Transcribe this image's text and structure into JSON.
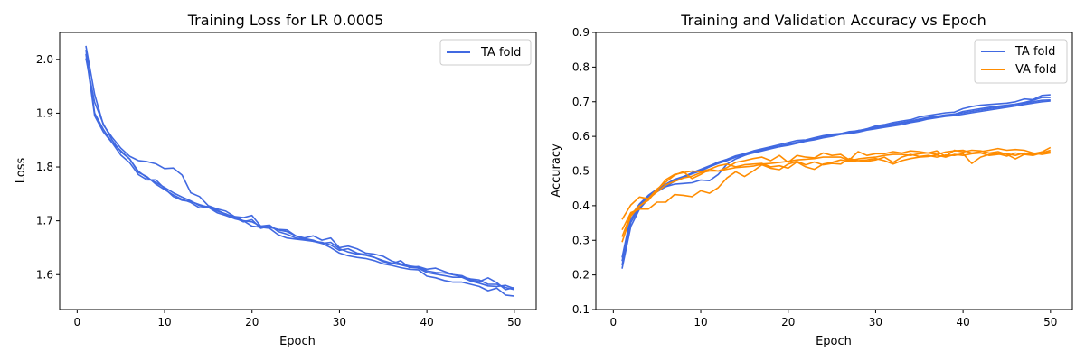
{
  "colors": {
    "blue": "#4169e1",
    "orange": "#ff8c00"
  },
  "chart_data": [
    {
      "type": "line",
      "title": "Training Loss for LR 0.0005",
      "xlabel": "Epoch",
      "ylabel": "Loss",
      "xlim": [
        -2,
        52.5
      ],
      "ylim": [
        1.535,
        2.05
      ],
      "xticks": [
        0,
        10,
        20,
        30,
        40,
        50
      ],
      "yticks": [
        1.6,
        1.7,
        1.8,
        1.9,
        2.0
      ],
      "ytick_labels": [
        "1.6",
        "1.7",
        "1.8",
        "1.9",
        "2.0"
      ],
      "grid": false,
      "legend": {
        "position": "top-right",
        "entries": [
          {
            "label": "TA fold",
            "color": "#4169e1"
          }
        ]
      },
      "x": [
        1,
        2,
        3,
        4,
        5,
        6,
        7,
        8,
        9,
        10,
        11,
        12,
        13,
        14,
        15,
        16,
        17,
        18,
        19,
        20,
        21,
        22,
        23,
        24,
        25,
        26,
        27,
        28,
        29,
        30,
        31,
        32,
        33,
        34,
        35,
        36,
        37,
        38,
        39,
        40,
        41,
        42,
        43,
        44,
        45,
        46,
        47,
        48,
        49,
        50
      ],
      "series": [
        {
          "color": "#4169e1",
          "values": [
            2.025,
            1.935,
            1.878,
            1.855,
            1.835,
            1.82,
            1.812,
            1.81,
            1.806,
            1.797,
            1.798,
            1.785,
            1.752,
            1.745,
            1.728,
            1.722,
            1.718,
            1.708,
            1.706,
            1.71,
            1.69,
            1.688,
            1.684,
            1.683,
            1.672,
            1.668,
            1.672,
            1.664,
            1.668,
            1.65,
            1.653,
            1.648,
            1.64,
            1.638,
            1.634,
            1.625,
            1.62,
            1.616,
            1.614,
            1.607,
            1.604,
            1.603,
            1.6,
            1.596,
            1.592,
            1.59,
            1.582,
            1.582,
            1.576,
            1.572
          ]
        },
        {
          "color": "#4169e1",
          "values": [
            2.018,
            1.9,
            1.87,
            1.845,
            1.83,
            1.815,
            1.792,
            1.78,
            1.771,
            1.762,
            1.752,
            1.744,
            1.737,
            1.728,
            1.726,
            1.72,
            1.712,
            1.708,
            1.7,
            1.698,
            1.69,
            1.692,
            1.68,
            1.675,
            1.668,
            1.666,
            1.662,
            1.66,
            1.655,
            1.645,
            1.648,
            1.64,
            1.637,
            1.632,
            1.624,
            1.62,
            1.626,
            1.613,
            1.615,
            1.61,
            1.612,
            1.606,
            1.6,
            1.598,
            1.59,
            1.587,
            1.594,
            1.585,
            1.572,
            1.576
          ]
        },
        {
          "color": "#4169e1",
          "values": [
            2.01,
            1.895,
            1.865,
            1.845,
            1.822,
            1.808,
            1.786,
            1.776,
            1.776,
            1.76,
            1.745,
            1.738,
            1.736,
            1.73,
            1.725,
            1.715,
            1.71,
            1.704,
            1.7,
            1.69,
            1.688,
            1.686,
            1.674,
            1.668,
            1.666,
            1.664,
            1.662,
            1.658,
            1.65,
            1.64,
            1.635,
            1.632,
            1.63,
            1.626,
            1.62,
            1.617,
            1.613,
            1.61,
            1.609,
            1.597,
            1.594,
            1.589,
            1.586,
            1.586,
            1.582,
            1.578,
            1.57,
            1.575,
            1.562,
            1.56
          ]
        },
        {
          "color": "#4169e1",
          "values": [
            2.002,
            1.92,
            1.88,
            1.85,
            1.828,
            1.815,
            1.79,
            1.782,
            1.768,
            1.758,
            1.748,
            1.74,
            1.734,
            1.724,
            1.726,
            1.718,
            1.713,
            1.706,
            1.698,
            1.702,
            1.686,
            1.69,
            1.683,
            1.68,
            1.672,
            1.667,
            1.664,
            1.658,
            1.66,
            1.648,
            1.642,
            1.638,
            1.636,
            1.632,
            1.626,
            1.621,
            1.618,
            1.614,
            1.612,
            1.604,
            1.601,
            1.598,
            1.595,
            1.595,
            1.588,
            1.584,
            1.579,
            1.578,
            1.58,
            1.574
          ]
        }
      ]
    },
    {
      "type": "line",
      "title": "Training and Validation Accuracy vs Epoch",
      "xlabel": "Epoch",
      "ylabel": "Accuracy",
      "xlim": [
        -2,
        52.5
      ],
      "ylim": [
        0.1,
        0.9
      ],
      "xticks": [
        0,
        10,
        20,
        30,
        40,
        50
      ],
      "yticks": [
        0.1,
        0.2,
        0.3,
        0.4,
        0.5,
        0.6,
        0.7,
        0.8,
        0.9
      ],
      "ytick_labels": [
        "0.1",
        "0.2",
        "0.3",
        "0.4",
        "0.5",
        "0.6",
        "0.7",
        "0.8",
        "0.9"
      ],
      "grid": false,
      "legend": {
        "position": "top-right",
        "entries": [
          {
            "label": "TA fold",
            "color": "#4169e1"
          },
          {
            "label": "VA fold",
            "color": "#ff8c00"
          }
        ]
      },
      "x": [
        1,
        2,
        3,
        4,
        5,
        6,
        7,
        8,
        9,
        10,
        11,
        12,
        13,
        14,
        15,
        16,
        17,
        18,
        19,
        20,
        21,
        22,
        23,
        24,
        25,
        26,
        27,
        28,
        29,
        30,
        31,
        32,
        33,
        34,
        35,
        36,
        37,
        38,
        39,
        40,
        41,
        42,
        43,
        44,
        45,
        46,
        47,
        48,
        49,
        50
      ],
      "series": [
        {
          "color": "#4169e1",
          "values": [
            0.218,
            0.34,
            0.39,
            0.42,
            0.44,
            0.455,
            0.47,
            0.48,
            0.495,
            0.505,
            0.515,
            0.525,
            0.532,
            0.54,
            0.548,
            0.555,
            0.562,
            0.568,
            0.572,
            0.578,
            0.583,
            0.588,
            0.592,
            0.598,
            0.602,
            0.606,
            0.61,
            0.615,
            0.62,
            0.625,
            0.628,
            0.632,
            0.638,
            0.642,
            0.648,
            0.652,
            0.656,
            0.66,
            0.664,
            0.668,
            0.672,
            0.676,
            0.68,
            0.684,
            0.688,
            0.692,
            0.696,
            0.7,
            0.704,
            0.705
          ]
        },
        {
          "color": "#4169e1",
          "values": [
            0.24,
            0.36,
            0.4,
            0.425,
            0.445,
            0.455,
            0.462,
            0.464,
            0.466,
            0.474,
            0.472,
            0.49,
            0.52,
            0.535,
            0.545,
            0.554,
            0.56,
            0.566,
            0.57,
            0.574,
            0.58,
            0.586,
            0.592,
            0.598,
            0.604,
            0.608,
            0.612,
            0.617,
            0.62,
            0.626,
            0.63,
            0.636,
            0.64,
            0.644,
            0.65,
            0.655,
            0.658,
            0.662,
            0.664,
            0.672,
            0.676,
            0.68,
            0.684,
            0.687,
            0.69,
            0.693,
            0.698,
            0.704,
            0.712,
            0.712
          ]
        },
        {
          "color": "#4169e1",
          "values": [
            0.25,
            0.37,
            0.405,
            0.43,
            0.448,
            0.462,
            0.476,
            0.484,
            0.494,
            0.502,
            0.514,
            0.526,
            0.534,
            0.544,
            0.55,
            0.558,
            0.564,
            0.57,
            0.576,
            0.582,
            0.588,
            0.59,
            0.596,
            0.602,
            0.606,
            0.608,
            0.614,
            0.616,
            0.622,
            0.63,
            0.634,
            0.64,
            0.644,
            0.648,
            0.656,
            0.66,
            0.664,
            0.668,
            0.67,
            0.68,
            0.686,
            0.69,
            0.692,
            0.694,
            0.696,
            0.7,
            0.708,
            0.706,
            0.718,
            0.72
          ]
        },
        {
          "color": "#4169e1",
          "values": [
            0.228,
            0.352,
            0.395,
            0.422,
            0.442,
            0.46,
            0.472,
            0.482,
            0.492,
            0.5,
            0.512,
            0.522,
            0.53,
            0.54,
            0.546,
            0.552,
            0.558,
            0.564,
            0.57,
            0.576,
            0.582,
            0.586,
            0.59,
            0.596,
            0.6,
            0.606,
            0.608,
            0.612,
            0.618,
            0.622,
            0.626,
            0.63,
            0.634,
            0.64,
            0.644,
            0.65,
            0.654,
            0.658,
            0.66,
            0.664,
            0.668,
            0.672,
            0.676,
            0.68,
            0.684,
            0.688,
            0.692,
            0.696,
            0.7,
            0.702
          ]
        },
        {
          "color": "#ff8c00",
          "values": [
            0.36,
            0.402,
            0.425,
            0.42,
            0.44,
            0.46,
            0.47,
            0.48,
            0.485,
            0.495,
            0.5,
            0.5,
            0.505,
            0.51,
            0.512,
            0.514,
            0.52,
            0.522,
            0.525,
            0.528,
            0.532,
            0.534,
            0.536,
            0.54,
            0.54,
            0.54,
            0.53,
            0.535,
            0.538,
            0.54,
            0.545,
            0.548,
            0.548,
            0.545,
            0.55,
            0.552,
            0.548,
            0.555,
            0.558,
            0.56,
            0.552,
            0.556,
            0.56,
            0.565,
            0.56,
            0.562,
            0.56,
            0.552,
            0.548,
            0.552
          ]
        },
        {
          "color": "#ff8c00",
          "values": [
            0.33,
            0.38,
            0.39,
            0.39,
            0.41,
            0.41,
            0.432,
            0.43,
            0.426,
            0.443,
            0.436,
            0.452,
            0.48,
            0.498,
            0.484,
            0.5,
            0.518,
            0.508,
            0.504,
            0.52,
            0.528,
            0.518,
            0.526,
            0.518,
            0.522,
            0.52,
            0.536,
            0.53,
            0.528,
            0.532,
            0.54,
            0.525,
            0.54,
            0.548,
            0.542,
            0.545,
            0.54,
            0.546,
            0.545,
            0.55,
            0.522,
            0.54,
            0.548,
            0.55,
            0.543,
            0.552,
            0.548,
            0.55,
            0.555,
            0.555
          ]
        },
        {
          "color": "#ff8c00",
          "values": [
            0.31,
            0.375,
            0.4,
            0.415,
            0.445,
            0.475,
            0.49,
            0.495,
            0.5,
            0.498,
            0.505,
            0.515,
            0.52,
            0.512,
            0.518,
            0.52,
            0.522,
            0.512,
            0.515,
            0.508,
            0.526,
            0.512,
            0.505,
            0.52,
            0.525,
            0.532,
            0.528,
            0.53,
            0.532,
            0.536,
            0.53,
            0.52,
            0.53,
            0.536,
            0.54,
            0.542,
            0.546,
            0.54,
            0.548,
            0.545,
            0.55,
            0.552,
            0.545,
            0.548,
            0.55,
            0.545,
            0.552,
            0.548,
            0.555,
            0.568
          ]
        },
        {
          "color": "#ff8c00",
          "values": [
            0.295,
            0.37,
            0.398,
            0.42,
            0.448,
            0.468,
            0.488,
            0.498,
            0.478,
            0.49,
            0.505,
            0.5,
            0.51,
            0.525,
            0.53,
            0.536,
            0.54,
            0.53,
            0.545,
            0.525,
            0.545,
            0.54,
            0.538,
            0.552,
            0.545,
            0.548,
            0.532,
            0.556,
            0.545,
            0.55,
            0.55,
            0.556,
            0.552,
            0.558,
            0.556,
            0.552,
            0.558,
            0.542,
            0.56,
            0.555,
            0.56,
            0.558,
            0.552,
            0.556,
            0.548,
            0.535,
            0.548,
            0.545,
            0.552,
            0.56
          ]
        }
      ]
    }
  ]
}
